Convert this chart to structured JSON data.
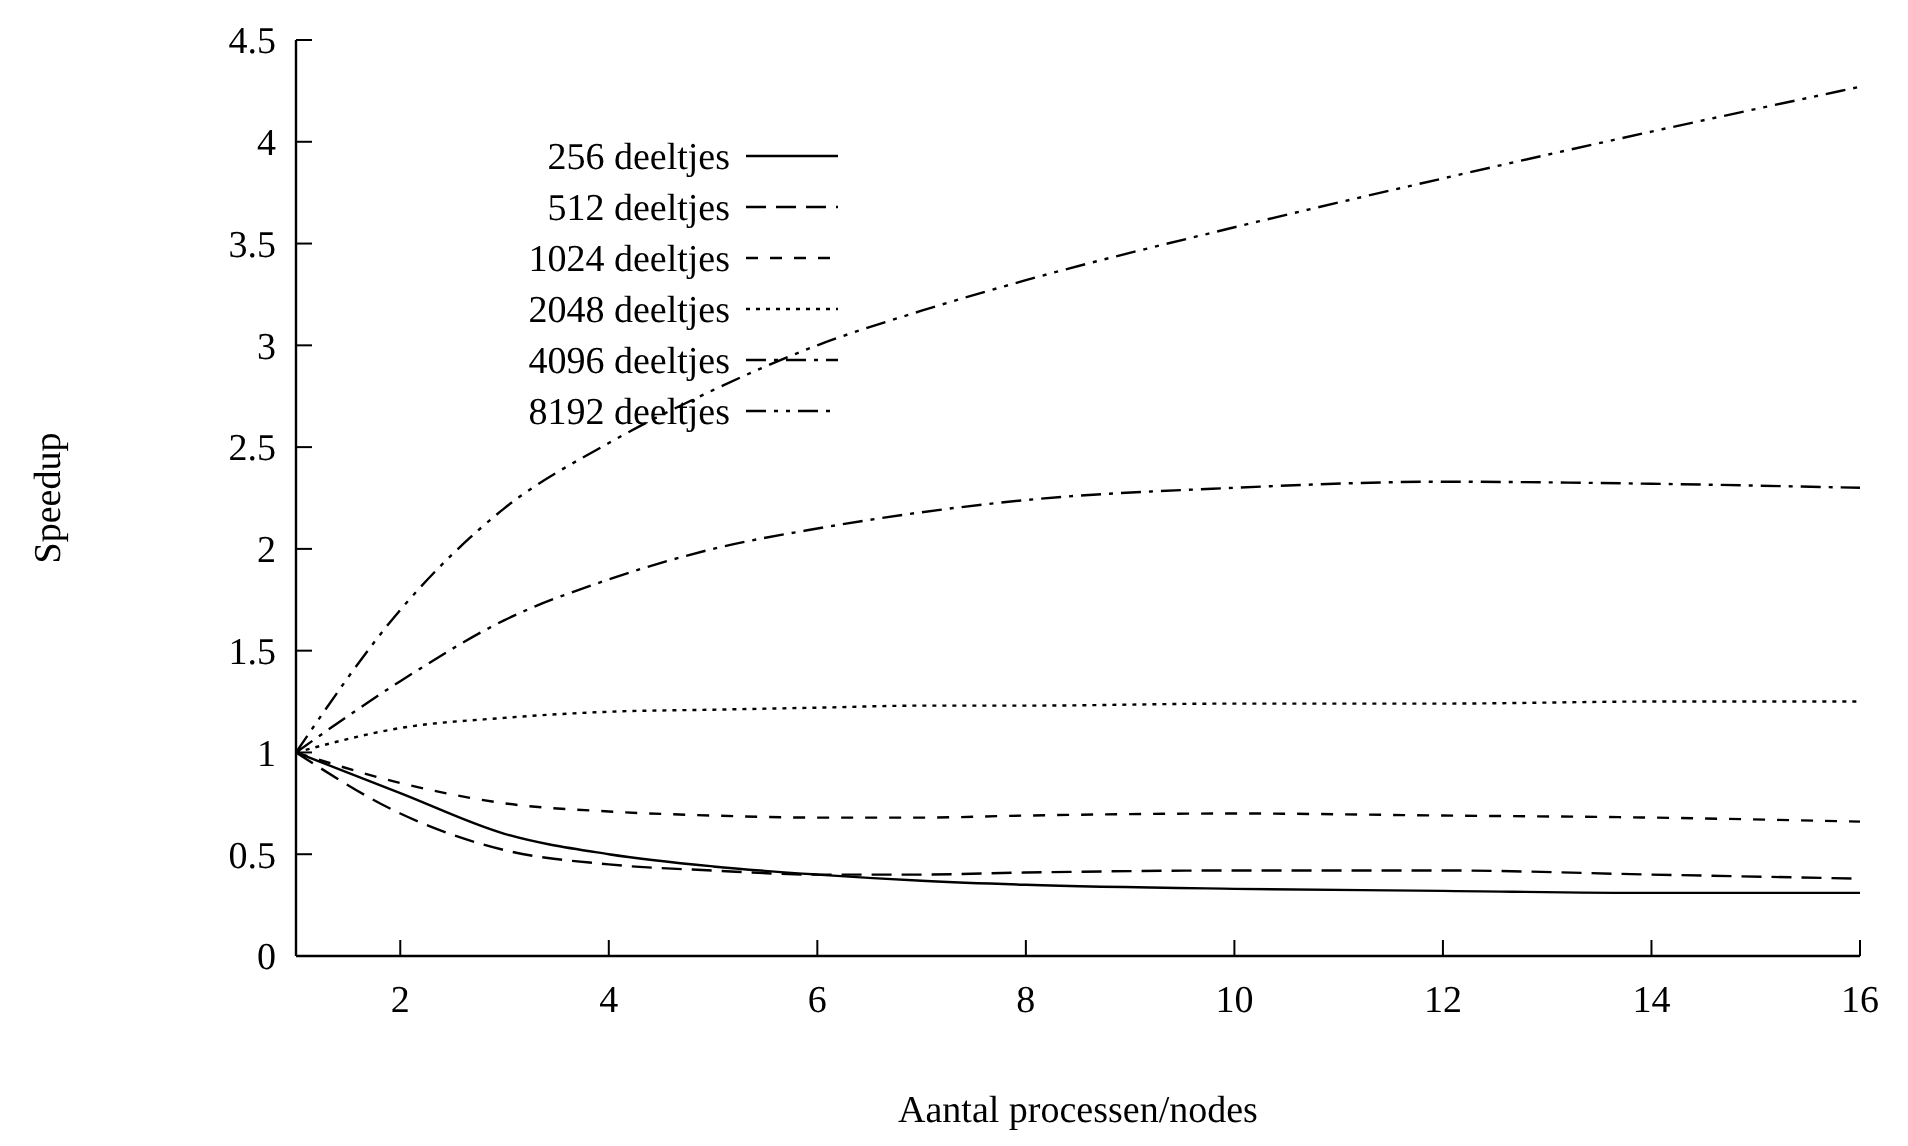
{
  "chart_data": {
    "type": "line",
    "xlabel": "Aantal processen/nodes",
    "ylabel": "Speedup",
    "x": [
      1,
      2,
      3,
      4,
      5,
      6,
      7,
      8,
      10,
      12,
      14,
      16
    ],
    "series": [
      {
        "name": "256 deeltjes",
        "color": "#000000",
        "line_style": "solid",
        "values": [
          1,
          0.8,
          0.6,
          0.5,
          0.44,
          0.4,
          0.37,
          0.35,
          0.33,
          0.32,
          0.31,
          0.31
        ]
      },
      {
        "name": "512 deeltjes",
        "color": "#000000",
        "line_style": "long-dashed",
        "values": [
          1,
          0.7,
          0.52,
          0.45,
          0.42,
          0.4,
          0.4,
          0.41,
          0.42,
          0.42,
          0.4,
          0.38
        ]
      },
      {
        "name": "1024 deeltjes",
        "color": "#000000",
        "line_style": "dashed",
        "values": [
          1,
          0.85,
          0.75,
          0.71,
          0.69,
          0.68,
          0.68,
          0.69,
          0.7,
          0.69,
          0.68,
          0.66
        ]
      },
      {
        "name": "2048 deeltjes",
        "color": "#000000",
        "line_style": "dotted",
        "values": [
          1,
          1.12,
          1.17,
          1.2,
          1.21,
          1.22,
          1.23,
          1.23,
          1.24,
          1.24,
          1.25,
          1.25
        ]
      },
      {
        "name": "4096 deeltjes",
        "color": "#000000",
        "line_style": "dash-dot",
        "values": [
          1,
          1.35,
          1.65,
          1.85,
          2.0,
          2.1,
          2.18,
          2.24,
          2.3,
          2.33,
          2.32,
          2.3
        ]
      },
      {
        "name": "8192 deeltjes",
        "color": "#000000",
        "line_style": "dash-dot-dot",
        "values": [
          1,
          1.7,
          2.2,
          2.52,
          2.78,
          3.0,
          3.17,
          3.32,
          3.58,
          3.82,
          4.05,
          4.27
        ]
      }
    ],
    "xlim": [
      1,
      16
    ],
    "xticks": [
      2,
      4,
      6,
      8,
      10,
      12,
      14,
      16
    ],
    "ylim": [
      0,
      4.5
    ],
    "yticks": [
      0,
      0.5,
      1,
      1.5,
      2,
      2.5,
      3,
      3.5,
      4,
      4.5
    ],
    "grid": false,
    "legend": "top left",
    "marker": "none"
  }
}
